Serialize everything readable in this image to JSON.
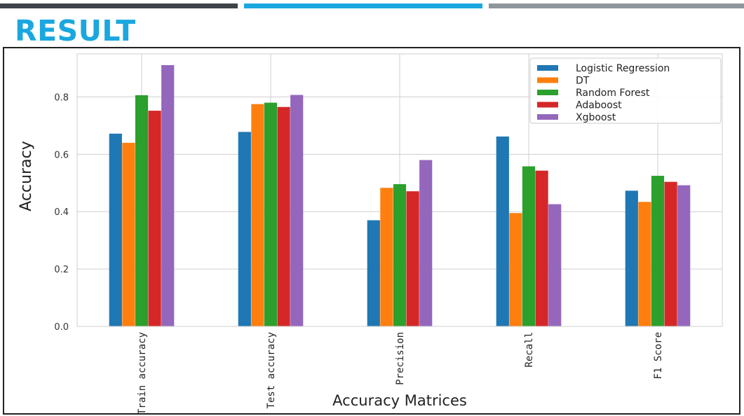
{
  "slide": {
    "title": "RESULT",
    "accent_colors": [
      "#3d4349",
      "#1aa7e0",
      "#8f969c"
    ]
  },
  "chart_data": {
    "type": "bar",
    "categories": [
      "Train accuracy",
      "Test accuracy",
      "Precision",
      "Recall",
      "F1 Score"
    ],
    "series": [
      {
        "name": "Logistic Regression",
        "color": "#1f77b4",
        "values": [
          0.672,
          0.678,
          0.37,
          0.662,
          0.473
        ]
      },
      {
        "name": "DT",
        "color": "#ff7f0e",
        "values": [
          0.64,
          0.775,
          0.483,
          0.395,
          0.434
        ]
      },
      {
        "name": "Random Forest",
        "color": "#2ca02c",
        "values": [
          0.806,
          0.78,
          0.496,
          0.558,
          0.525
        ]
      },
      {
        "name": "Adaboost",
        "color": "#d62728",
        "values": [
          0.752,
          0.765,
          0.471,
          0.543,
          0.504
        ]
      },
      {
        "name": "Xgboost",
        "color": "#9467bd",
        "values": [
          0.911,
          0.807,
          0.58,
          0.426,
          0.492
        ]
      }
    ],
    "xlabel": "Accuracy Matrices",
    "ylabel": "Accuracy",
    "ylim": [
      0,
      0.95
    ],
    "yticks": [
      0.0,
      0.2,
      0.4,
      0.6,
      0.8
    ],
    "ytick_labels": [
      "0.0",
      "0.2",
      "0.4",
      "0.6",
      "0.8"
    ],
    "grid": true,
    "legend_position": "top-right"
  }
}
